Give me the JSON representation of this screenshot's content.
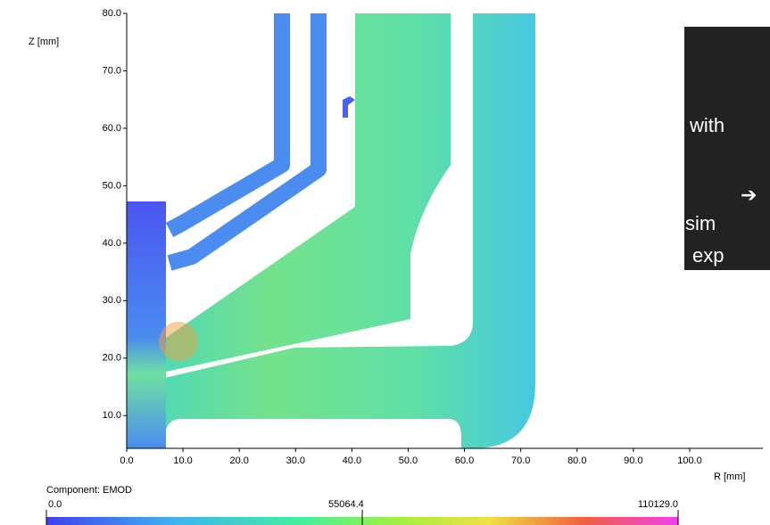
{
  "chart_data": {
    "type": "contour",
    "xlabel": "R [mm]",
    "ylabel": "Z [mm]",
    "xlim": [
      0,
      113
    ],
    "ylim": [
      4.3,
      80
    ],
    "xticks": [
      {
        "value": 0,
        "label": "0.0"
      },
      {
        "value": 10,
        "label": "10.0"
      },
      {
        "value": 20,
        "label": "20.0"
      },
      {
        "value": 30,
        "label": "30.0"
      },
      {
        "value": 40,
        "label": "40.0"
      },
      {
        "value": 50,
        "label": "50.0"
      },
      {
        "value": 60,
        "label": "60.0"
      },
      {
        "value": 70,
        "label": "70.0"
      },
      {
        "value": 80,
        "label": "80.0"
      },
      {
        "value": 90,
        "label": "90.0"
      },
      {
        "value": 100,
        "label": "100.0"
      }
    ],
    "yticks": [
      {
        "value": 10,
        "label": "10.0"
      },
      {
        "value": 20,
        "label": "20.0"
      },
      {
        "value": 30,
        "label": "30.0"
      },
      {
        "value": 40,
        "label": "40.0"
      },
      {
        "value": 50,
        "label": "50.0"
      },
      {
        "value": 60,
        "label": "60.0"
      },
      {
        "value": 70,
        "label": "70.0"
      },
      {
        "value": 80,
        "label": "80.0"
      }
    ],
    "colorbar": {
      "label": "Component: EMOD",
      "clim": [
        0,
        110129
      ],
      "ticks": [
        {
          "value": 0,
          "label": "0.0"
        },
        {
          "value": 55064.4,
          "label": "55064.4"
        },
        {
          "value": 110129,
          "label": "110129.0"
        }
      ]
    },
    "annotations": [
      "with",
      "➔",
      "sim",
      "exp"
    ]
  }
}
